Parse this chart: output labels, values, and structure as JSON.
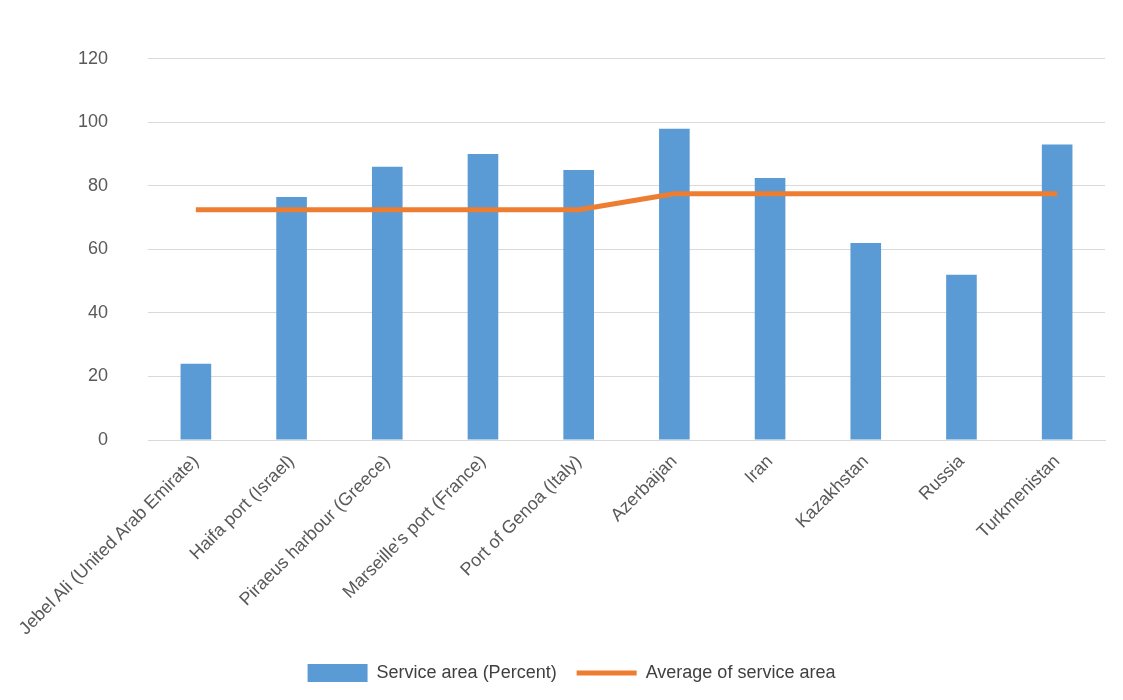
{
  "chart_data": {
    "type": "bar",
    "categories": [
      "Jebel Ali (United Arab Emirate)",
      "Haifa port (Israel)",
      "Piraeus harbour (Greece)",
      "Marseille's port (France)",
      "Port of Genoa (Italy)",
      "Azerbaijan",
      "Iran",
      "Kazakhstan",
      "Russia",
      "Turkmenistan"
    ],
    "series": [
      {
        "name": "Service area (Percent)",
        "color": "#5b9bd5",
        "values": [
          24,
          76.5,
          86,
          90,
          85,
          98,
          82.5,
          62,
          52,
          93
        ]
      },
      {
        "name": "Average of service area",
        "type": "line",
        "color": "#ed7d31",
        "values": [
          72.5,
          72.5,
          72.5,
          72.5,
          72.5,
          77.5,
          77.5,
          77.5,
          77.5,
          77.5
        ]
      }
    ],
    "ylim": [
      0,
      120
    ],
    "yticks": [
      0,
      20,
      40,
      60,
      80,
      100,
      120
    ],
    "grid": "y",
    "legend": "bottom",
    "marker": "none"
  }
}
